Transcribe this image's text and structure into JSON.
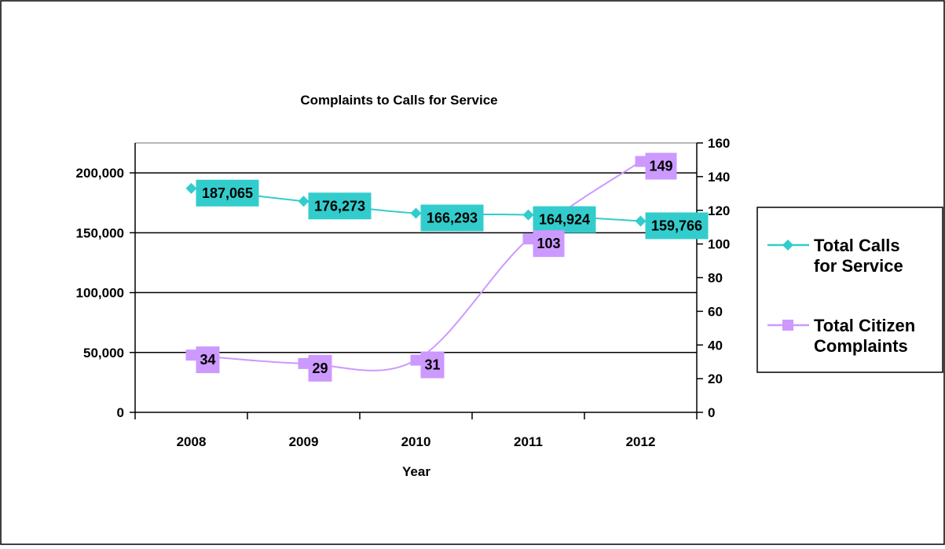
{
  "chart_data": {
    "type": "line",
    "title": "Complaints to Calls for Service",
    "xlabel": "Year",
    "ylabel": "",
    "y2label": "",
    "categories": [
      "2008",
      "2009",
      "2010",
      "2011",
      "2012"
    ],
    "ylim": [
      0,
      225000
    ],
    "y_ticks": [
      0,
      50000,
      100000,
      150000,
      200000
    ],
    "y_tick_labels": [
      "0",
      "50,000",
      "100,000",
      "150,000",
      "200,000"
    ],
    "y2lim": [
      0,
      160
    ],
    "y2_ticks": [
      0,
      20,
      40,
      60,
      80,
      100,
      120,
      140,
      160
    ],
    "y2_tick_labels": [
      "0",
      "20",
      "40",
      "60",
      "80",
      "100",
      "120",
      "140",
      "160"
    ],
    "grid": "horizontal major gridlines (left axis)",
    "legend": "right",
    "series": [
      {
        "name": "Total Calls for Service",
        "legend_lines": [
          "Total Calls",
          "for Service"
        ],
        "axis": "left",
        "marker": "diamond",
        "color": "#33CCCC",
        "label_bg": "#33CCCC",
        "values": [
          187065,
          176273,
          166293,
          164924,
          159766
        ],
        "data_labels": [
          "187,065",
          "176,273",
          "166,293",
          "164,924",
          "159,766"
        ]
      },
      {
        "name": "Total Citizen Complaints",
        "legend_lines": [
          "Total Citizen",
          "Complaints"
        ],
        "axis": "right",
        "marker": "square",
        "color": "#CC99FF",
        "label_bg": "#CC99FF",
        "values": [
          34,
          29,
          31,
          103,
          149
        ],
        "data_labels": [
          "34",
          "29",
          "31",
          "103",
          "149"
        ]
      }
    ]
  }
}
